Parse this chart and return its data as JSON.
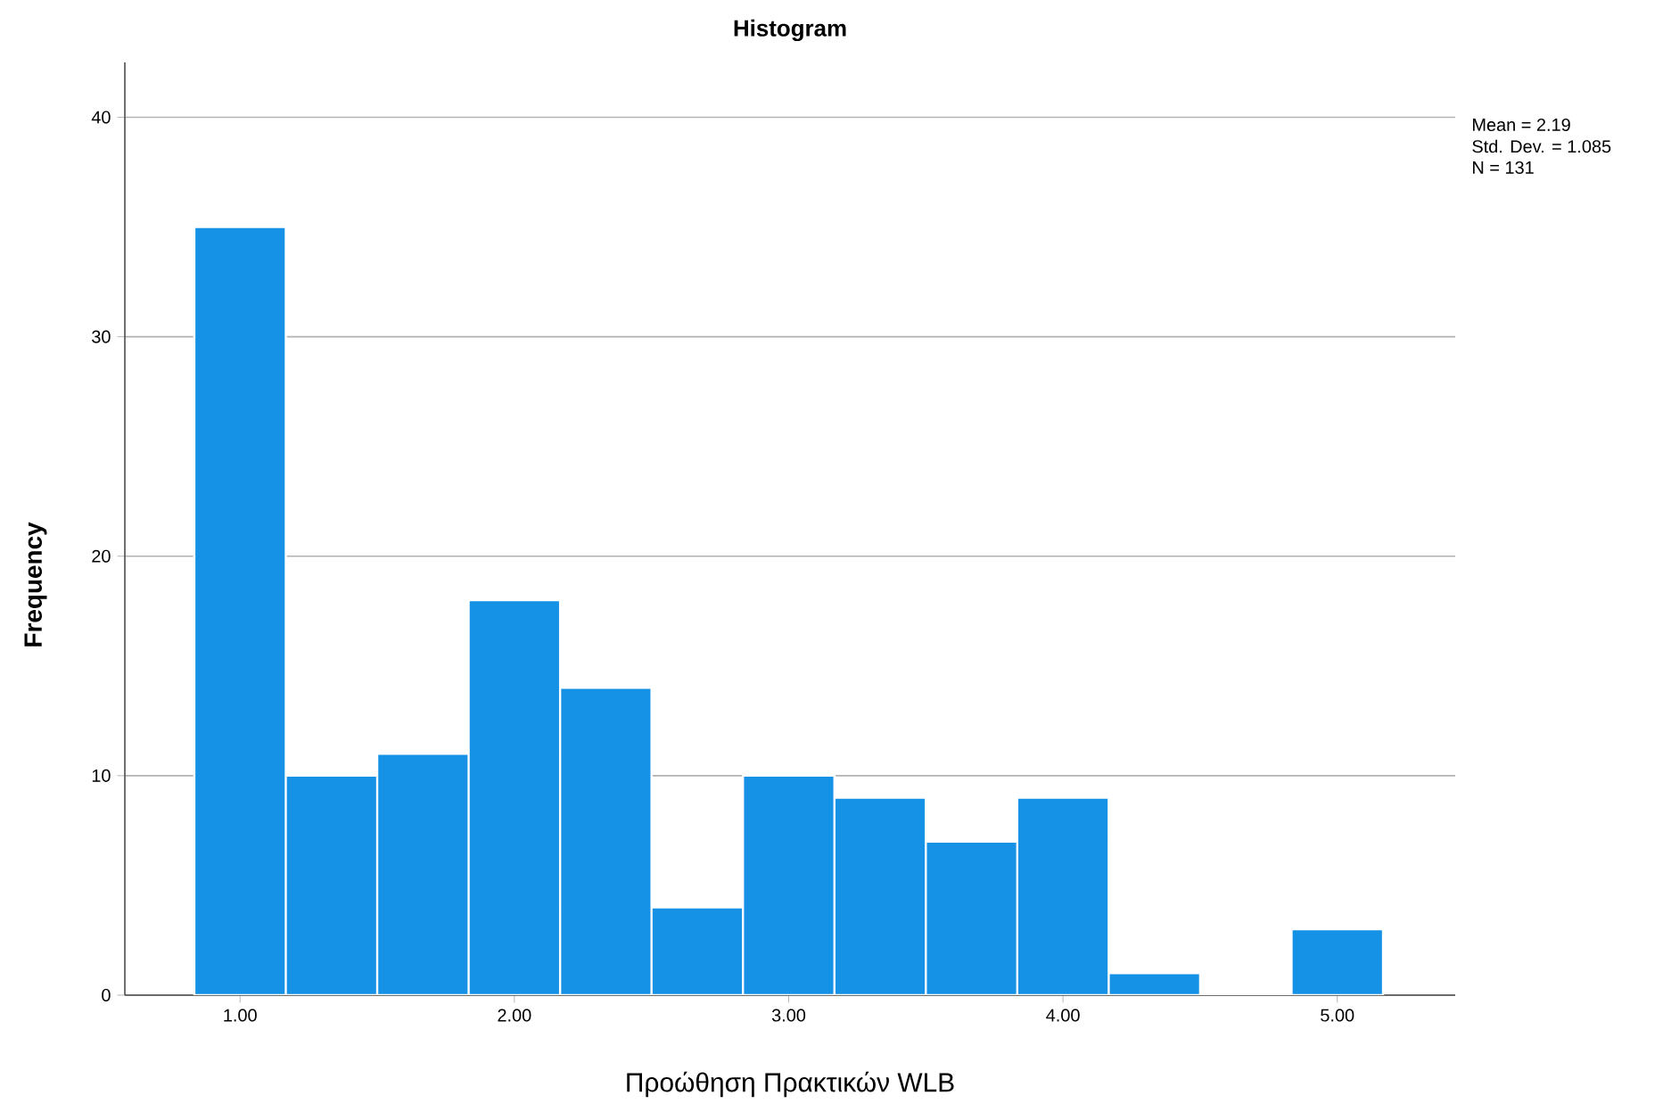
{
  "chart_data": {
    "type": "histogram",
    "title": "Histogram",
    "xlabel": "Προώθηση Πρακτικών WLB",
    "ylabel": "Frequency",
    "bins": [
      0.8333,
      1.1667,
      1.5,
      1.8333,
      2.1667,
      2.5,
      2.8333,
      3.1667,
      3.5,
      3.8333,
      4.1667,
      4.5,
      4.8333,
      5.1667
    ],
    "values": [
      35,
      10,
      11,
      18,
      14,
      4,
      10,
      9,
      7,
      9,
      1,
      0,
      3
    ],
    "color": "#1591e6",
    "xlim": [
      0.58,
      5.43
    ],
    "ylim": [
      0,
      42.5
    ],
    "xticks": [
      {
        "value": 1,
        "label": "1.00"
      },
      {
        "value": 2,
        "label": "2.00"
      },
      {
        "value": 3,
        "label": "3.00"
      },
      {
        "value": 4,
        "label": "4.00"
      },
      {
        "value": 5,
        "label": "5.00"
      }
    ],
    "yticks": [
      0,
      10,
      20,
      30,
      40
    ],
    "grid": "y",
    "annotations": [
      "Mean = 2.19",
      "Std. Dev. = 1.085",
      "N = 131"
    ]
  }
}
